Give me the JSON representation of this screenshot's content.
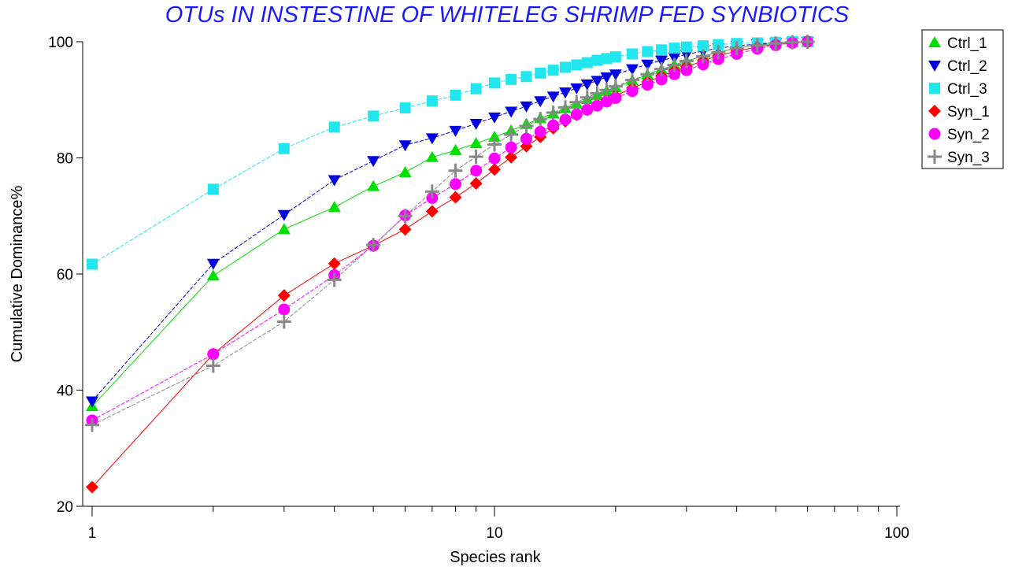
{
  "chart_data": {
    "type": "line",
    "title": "OTUs IN INSTESTINE OF WHITELEG SHRIMP FED SYNBIOTICS",
    "xlabel": "Species rank",
    "ylabel": "Cumulative Dominance%",
    "xscale": "log",
    "xlim": [
      1,
      100
    ],
    "ylim": [
      20,
      100
    ],
    "xticks": [
      1,
      10,
      100
    ],
    "xtick_labels": [
      "1",
      "10",
      "100"
    ],
    "yticks": [
      20,
      40,
      60,
      80,
      100
    ],
    "ytick_labels": [
      "20",
      "40",
      "60",
      "80",
      "100"
    ],
    "grid": false,
    "legend_position": "right",
    "series": [
      {
        "name": "Ctrl_1",
        "color": "#00e000",
        "marker": "triangle-up",
        "x": [
          1,
          2,
          3,
          4,
          5,
          6,
          7,
          8,
          9,
          10,
          11,
          12,
          13,
          14,
          15,
          16,
          17,
          18,
          19,
          20,
          22,
          24,
          26,
          28,
          30,
          33,
          36,
          40,
          45,
          50,
          55,
          60
        ],
        "y": [
          37.2,
          59.7,
          67.7,
          71.5,
          75.1,
          77.5,
          80.1,
          81.3,
          82.5,
          83.6,
          84.7,
          85.8,
          86.8,
          87.6,
          88.5,
          89.3,
          90.1,
          90.8,
          91.5,
          92.1,
          93.3,
          94.3,
          95.2,
          96.0,
          96.7,
          97.5,
          98.2,
          98.9,
          99.4,
          99.7,
          99.9,
          100
        ]
      },
      {
        "name": "Ctrl_2",
        "color": "#0000e0",
        "marker": "triangle-down",
        "x": [
          1,
          2,
          3,
          4,
          5,
          6,
          7,
          8,
          9,
          10,
          11,
          12,
          13,
          14,
          15,
          16,
          17,
          18,
          19,
          20,
          22,
          24,
          26,
          28,
          30,
          33,
          36,
          40,
          45,
          50,
          55,
          60
        ],
        "y": [
          38.1,
          61.8,
          70.2,
          76.2,
          79.5,
          82.2,
          83.4,
          84.7,
          85.9,
          87.0,
          88.0,
          88.9,
          89.8,
          90.6,
          91.3,
          92.0,
          92.7,
          93.3,
          93.9,
          94.4,
          95.3,
          96.1,
          96.8,
          97.3,
          97.8,
          98.4,
          98.9,
          99.3,
          99.6,
          99.8,
          99.9,
          100
        ]
      },
      {
        "name": "Ctrl_3",
        "color": "#22e6ee",
        "marker": "square",
        "x": [
          1,
          2,
          3,
          4,
          5,
          6,
          7,
          8,
          9,
          10,
          11,
          12,
          13,
          14,
          15,
          16,
          17,
          18,
          19,
          20,
          22,
          24,
          26,
          28,
          30,
          33,
          36,
          40,
          45,
          50,
          55,
          60
        ],
        "y": [
          61.7,
          74.6,
          81.6,
          85.3,
          87.2,
          88.6,
          89.8,
          90.8,
          91.9,
          92.9,
          93.5,
          94.0,
          94.6,
          95.1,
          95.6,
          96.0,
          96.4,
          96.8,
          97.1,
          97.4,
          97.9,
          98.3,
          98.6,
          98.9,
          99.1,
          99.3,
          99.5,
          99.7,
          99.8,
          99.9,
          100,
          100
        ]
      },
      {
        "name": "Syn_1",
        "color": "#ff0000",
        "marker": "diamond",
        "x": [
          1,
          2,
          3,
          4,
          5,
          6,
          7,
          8,
          9,
          10,
          11,
          12,
          13,
          14,
          15,
          16,
          17,
          18,
          19,
          20,
          22,
          24,
          26,
          28,
          30,
          33,
          36,
          40,
          45,
          50,
          55,
          60
        ],
        "y": [
          23.3,
          46.2,
          56.3,
          61.8,
          64.9,
          67.7,
          70.8,
          73.2,
          75.6,
          78.0,
          80.1,
          82.0,
          83.6,
          85.1,
          86.3,
          87.4,
          88.3,
          89.2,
          90.0,
          90.7,
          92.0,
          93.1,
          94.1,
          95.0,
          95.7,
          96.7,
          97.6,
          98.4,
          99.1,
          99.6,
          99.9,
          100
        ]
      },
      {
        "name": "Syn_2",
        "color": "#ff00ff",
        "marker": "circle",
        "x": [
          1,
          2,
          3,
          4,
          5,
          6,
          7,
          8,
          9,
          10,
          11,
          12,
          13,
          14,
          15,
          16,
          17,
          18,
          19,
          20,
          22,
          24,
          26,
          28,
          30,
          33,
          36,
          40,
          45,
          50,
          55,
          60
        ],
        "y": [
          34.8,
          46.2,
          53.9,
          59.8,
          64.9,
          70.1,
          73.1,
          75.5,
          77.8,
          79.9,
          81.8,
          83.3,
          84.5,
          85.6,
          86.6,
          87.5,
          88.3,
          89.0,
          89.7,
          90.3,
          91.5,
          92.6,
          93.5,
          94.4,
          95.1,
          96.1,
          97.0,
          97.9,
          98.8,
          99.4,
          99.8,
          100
        ]
      },
      {
        "name": "Syn_3",
        "color": "#888888",
        "marker": "plus",
        "x": [
          1,
          2,
          3,
          4,
          5,
          6,
          7,
          8,
          9,
          10,
          11,
          12,
          13,
          14,
          15,
          16,
          17,
          18,
          19,
          20,
          22,
          24,
          26,
          28,
          30,
          33,
          36,
          40,
          45,
          50,
          55,
          60
        ],
        "y": [
          34.0,
          44.2,
          51.8,
          59.0,
          65.0,
          70.0,
          74.2,
          77.8,
          80.2,
          82.3,
          84.0,
          85.5,
          86.7,
          87.8,
          88.7,
          89.6,
          90.4,
          91.1,
          91.7,
          92.3,
          93.4,
          94.4,
          95.3,
          96.0,
          96.7,
          97.5,
          98.2,
          98.9,
          99.4,
          99.7,
          99.9,
          100
        ]
      }
    ]
  }
}
